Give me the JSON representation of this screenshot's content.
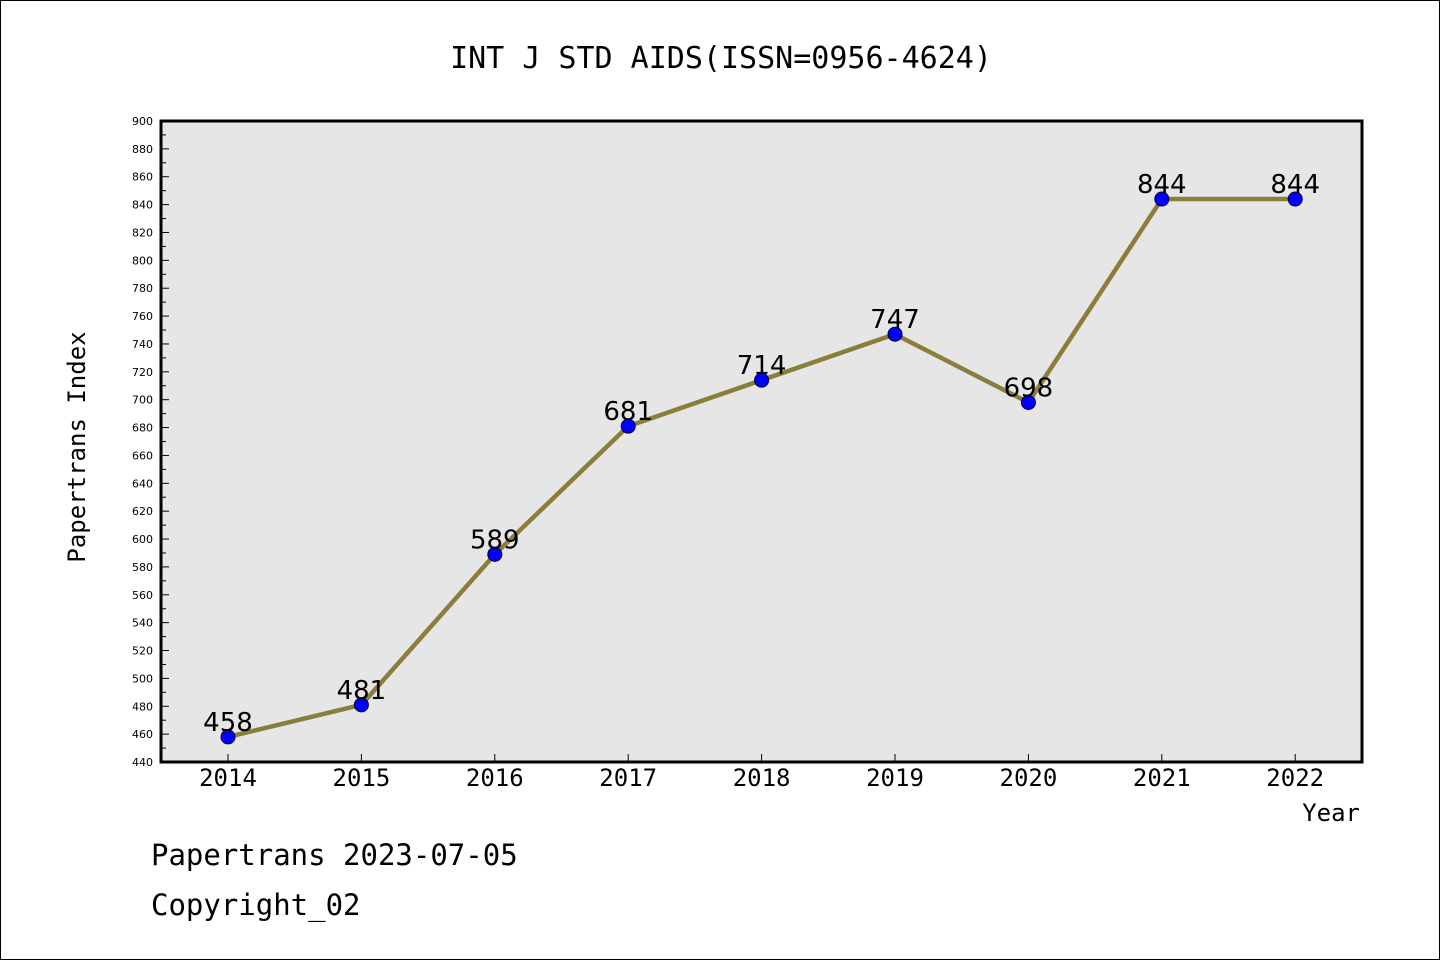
{
  "chart_data": {
    "type": "line",
    "title": "INT J STD AIDS(ISSN=0956-4624)",
    "xlabel": "Year",
    "ylabel": "Papertrans Index",
    "categories": [
      "2014",
      "2015",
      "2016",
      "2017",
      "2018",
      "2019",
      "2020",
      "2021",
      "2022"
    ],
    "series": [
      {
        "values": [
          458,
          481,
          589,
          681,
          714,
          747,
          698,
          844,
          844
        ],
        "line_color": "#8b7d3a",
        "marker_color": "#0000ff"
      }
    ],
    "data_labels": [
      "458",
      "481",
      "589",
      "681",
      "714",
      "747",
      "698",
      "844",
      "844"
    ],
    "ylim": [
      440,
      900
    ],
    "yticks": [
      440,
      460,
      480,
      500,
      520,
      540,
      560,
      580,
      600,
      620,
      640,
      660,
      680,
      700,
      720,
      740,
      760,
      780,
      800,
      820,
      840,
      860,
      880,
      900
    ],
    "grid": false,
    "plot_background": "#e6e6e6"
  },
  "footer": {
    "line1": "Papertrans 2023-07-05",
    "line2": "Copyright_02"
  }
}
